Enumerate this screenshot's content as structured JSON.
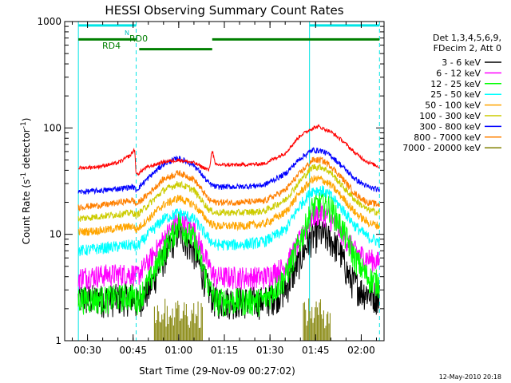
{
  "colors": {
    "background": "#ffffff",
    "axis": "#000000",
    "attenuator_marker": "#00e5e5",
    "text": "#000000"
  },
  "chart_data": {
    "type": "line",
    "title": "HESSI Observing Summary Count Rates",
    "xlabel": "Start Time (29-Nov-09 00:27:02)",
    "ylabel_main": "Count Rate (s",
    "ylabel_sup1": "-1",
    "ylabel_mid": " detector",
    "ylabel_sup2": "-1",
    "ylabel_end": ")",
    "y_scale": "log",
    "ylim": [
      1,
      1000
    ],
    "xlim_minutes": [
      22.5,
      127.5
    ],
    "x_ticks": [
      {
        "t": 30,
        "label": "00:30"
      },
      {
        "t": 45,
        "label": "00:45"
      },
      {
        "t": 60,
        "label": "01:00"
      },
      {
        "t": 75,
        "label": "01:15"
      },
      {
        "t": 90,
        "label": "01:30"
      },
      {
        "t": 105,
        "label": "01:45"
      },
      {
        "t": 120,
        "label": "02:00"
      }
    ],
    "y_ticks": [
      {
        "v": 1,
        "label": "1"
      },
      {
        "v": 10,
        "label": "10"
      },
      {
        "v": 100,
        "label": "100"
      },
      {
        "v": 1000,
        "label": "1000"
      }
    ],
    "grid": false,
    "legend_position": "right",
    "legend_header": [
      "Det 1,3,4,5,6,9,",
      "FDecim 2, Att 0"
    ],
    "night_intervals_minutes": [
      [
        27.0,
        46.0
      ],
      [
        103.0,
        126.0
      ]
    ],
    "flag_labels": {
      "n": "N",
      "rd0": "RD0",
      "rd4": "RD4"
    },
    "flags": [
      {
        "name": "N",
        "color": "#00e5e5",
        "value": 920,
        "segments": [
          [
            27,
            46
          ],
          [
            103,
            126
          ]
        ]
      },
      {
        "name": "RD0",
        "color": "#007f00",
        "value": 680,
        "segments": [
          [
            27,
            46
          ],
          [
            71,
            126
          ]
        ]
      },
      {
        "name": "RD4",
        "color": "#007f00",
        "value": 550,
        "segments": [
          [
            47,
            71
          ]
        ]
      }
    ],
    "series": [
      {
        "name": "3 - 6 keV",
        "color": "#000000",
        "points": [
          [
            27,
            2.5
          ],
          [
            36,
            2.5
          ],
          [
            45,
            2.6
          ],
          [
            46,
            2.3
          ],
          [
            50,
            3
          ],
          [
            55,
            6
          ],
          [
            60,
            11
          ],
          [
            65,
            7
          ],
          [
            70,
            3
          ],
          [
            72,
            2.4
          ],
          [
            80,
            2.4
          ],
          [
            88,
            2.4
          ],
          [
            95,
            3
          ],
          [
            100,
            6
          ],
          [
            103,
            9
          ],
          [
            106,
            10.5
          ],
          [
            110,
            9
          ],
          [
            113,
            7
          ],
          [
            116,
            4
          ],
          [
            120,
            3
          ],
          [
            126,
            2.6
          ]
        ]
      },
      {
        "name": "6 - 12 keV",
        "color": "#ff00ff",
        "points": [
          [
            27,
            4
          ],
          [
            36,
            4.2
          ],
          [
            45,
            4.3
          ],
          [
            46,
            4
          ],
          [
            50,
            5.5
          ],
          [
            55,
            9
          ],
          [
            60,
            14
          ],
          [
            65,
            11
          ],
          [
            70,
            5
          ],
          [
            72,
            4
          ],
          [
            80,
            4
          ],
          [
            88,
            4
          ],
          [
            95,
            5
          ],
          [
            100,
            9
          ],
          [
            104,
            15
          ],
          [
            107,
            16
          ],
          [
            110,
            14
          ],
          [
            114,
            10
          ],
          [
            118,
            7
          ],
          [
            122,
            6
          ],
          [
            126,
            5.5
          ]
        ]
      },
      {
        "name": "12 - 25 keV",
        "color": "#00ff00",
        "points": [
          [
            27,
            2.5
          ],
          [
            36,
            2.5
          ],
          [
            45,
            2.7
          ],
          [
            46,
            2.4
          ],
          [
            50,
            3.5
          ],
          [
            55,
            7
          ],
          [
            60,
            13
          ],
          [
            65,
            9
          ],
          [
            70,
            3.2
          ],
          [
            72,
            2.4
          ],
          [
            80,
            2.4
          ],
          [
            88,
            2.4
          ],
          [
            95,
            4
          ],
          [
            100,
            9
          ],
          [
            104,
            18
          ],
          [
            107,
            20
          ],
          [
            110,
            18
          ],
          [
            114,
            11
          ],
          [
            118,
            6
          ],
          [
            122,
            4
          ],
          [
            126,
            3.5
          ]
        ]
      },
      {
        "name": "25 - 50 keV",
        "color": "#00ffff",
        "points": [
          [
            27,
            7
          ],
          [
            36,
            7.5
          ],
          [
            45,
            8
          ],
          [
            46,
            7.5
          ],
          [
            50,
            10
          ],
          [
            55,
            14
          ],
          [
            60,
            16
          ],
          [
            65,
            14
          ],
          [
            70,
            9
          ],
          [
            72,
            8
          ],
          [
            80,
            8
          ],
          [
            88,
            8.5
          ],
          [
            95,
            11
          ],
          [
            100,
            19
          ],
          [
            104,
            26
          ],
          [
            107,
            26
          ],
          [
            110,
            23
          ],
          [
            114,
            17
          ],
          [
            118,
            12
          ],
          [
            122,
            9.5
          ],
          [
            126,
            8.5
          ]
        ]
      },
      {
        "name": "50 - 100 keV",
        "color": "#ffa500",
        "points": [
          [
            27,
            10.5
          ],
          [
            36,
            11
          ],
          [
            45,
            12
          ],
          [
            46,
            11
          ],
          [
            50,
            14
          ],
          [
            55,
            19
          ],
          [
            60,
            22
          ],
          [
            65,
            19
          ],
          [
            70,
            13
          ],
          [
            72,
            12
          ],
          [
            80,
            12
          ],
          [
            88,
            12.5
          ],
          [
            95,
            16
          ],
          [
            100,
            25
          ],
          [
            104,
            33
          ],
          [
            107,
            33
          ],
          [
            110,
            29
          ],
          [
            114,
            22
          ],
          [
            118,
            16
          ],
          [
            122,
            13
          ],
          [
            126,
            12
          ]
        ]
      },
      {
        "name": "100 - 300 keV",
        "color": "#cccc00",
        "points": [
          [
            27,
            14
          ],
          [
            36,
            15
          ],
          [
            45,
            16
          ],
          [
            46,
            15
          ],
          [
            50,
            19
          ],
          [
            55,
            26
          ],
          [
            60,
            30
          ],
          [
            65,
            26
          ],
          [
            70,
            17
          ],
          [
            72,
            16
          ],
          [
            80,
            16
          ],
          [
            88,
            16.5
          ],
          [
            95,
            21
          ],
          [
            100,
            32
          ],
          [
            104,
            43
          ],
          [
            107,
            43
          ],
          [
            110,
            38
          ],
          [
            114,
            28
          ],
          [
            118,
            21
          ],
          [
            122,
            17
          ],
          [
            126,
            16
          ]
        ]
      },
      {
        "name": "300 - 800 keV",
        "color": "#0000ff",
        "points": [
          [
            27,
            25
          ],
          [
            36,
            26
          ],
          [
            45,
            28
          ],
          [
            46,
            26
          ],
          [
            50,
            34
          ],
          [
            55,
            46
          ],
          [
            60,
            52
          ],
          [
            65,
            45
          ],
          [
            70,
            30
          ],
          [
            72,
            28
          ],
          [
            80,
            28
          ],
          [
            88,
            29
          ],
          [
            95,
            37
          ],
          [
            100,
            52
          ],
          [
            104,
            62
          ],
          [
            107,
            61
          ],
          [
            110,
            55
          ],
          [
            114,
            43
          ],
          [
            118,
            33
          ],
          [
            122,
            28
          ],
          [
            126,
            26
          ]
        ]
      },
      {
        "name": "800 - 7000 keV",
        "color": "#ff8000",
        "points": [
          [
            27,
            18
          ],
          [
            36,
            19
          ],
          [
            45,
            21
          ],
          [
            46,
            19
          ],
          [
            50,
            24
          ],
          [
            55,
            33
          ],
          [
            60,
            38
          ],
          [
            65,
            33
          ],
          [
            70,
            21
          ],
          [
            72,
            20
          ],
          [
            80,
            20
          ],
          [
            88,
            20.5
          ],
          [
            95,
            26
          ],
          [
            100,
            38
          ],
          [
            104,
            50
          ],
          [
            107,
            50
          ],
          [
            110,
            44
          ],
          [
            114,
            33
          ],
          [
            118,
            24
          ],
          [
            122,
            20
          ],
          [
            126,
            19
          ]
        ]
      },
      {
        "name": "7000 - 20000 keV",
        "color": "#808000",
        "points": []
      }
    ],
    "red_series_points": [
      [
        27,
        42
      ],
      [
        33,
        43
      ],
      [
        40,
        47
      ],
      [
        44,
        55
      ],
      [
        45.5,
        63
      ],
      [
        46,
        36
      ],
      [
        49,
        42
      ],
      [
        55,
        48
      ],
      [
        60,
        50
      ],
      [
        65,
        47
      ],
      [
        70,
        40
      ],
      [
        71,
        63
      ],
      [
        72,
        45
      ],
      [
        80,
        45
      ],
      [
        88,
        46
      ],
      [
        95,
        58
      ],
      [
        100,
        85
      ],
      [
        104,
        100
      ],
      [
        106,
        103
      ],
      [
        110,
        92
      ],
      [
        114,
        75
      ],
      [
        118,
        58
      ],
      [
        122,
        48
      ],
      [
        126,
        43
      ]
    ],
    "footer_date": "12-May-2010 20:18"
  }
}
